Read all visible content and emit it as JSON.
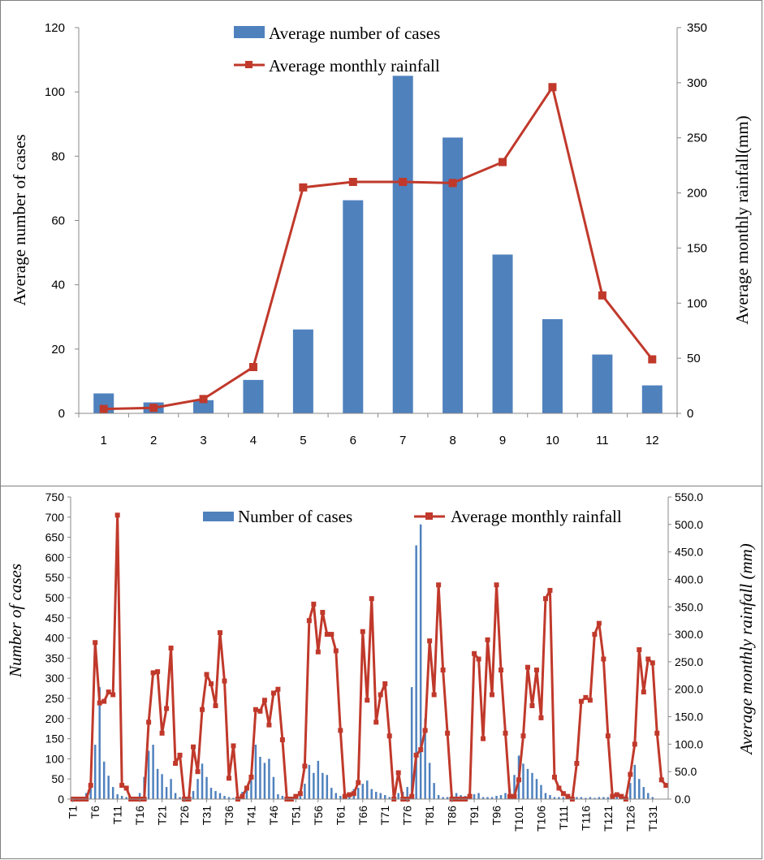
{
  "chart_data": [
    {
      "type": "bar+line",
      "title": "",
      "xlabel": "",
      "ylabel": "Average number of cases",
      "y2label": "Average monthly rainfall(mm)",
      "ylim": [
        0,
        120
      ],
      "yticks": [
        0,
        20,
        40,
        60,
        80,
        100,
        120
      ],
      "y2lim": [
        0,
        350
      ],
      "y2ticks": [
        0,
        50,
        100,
        150,
        200,
        250,
        300,
        350
      ],
      "categories": [
        "1",
        "2",
        "3",
        "4",
        "5",
        "6",
        "7",
        "8",
        "9",
        "10",
        "11",
        "12"
      ],
      "series": [
        {
          "name": "Average number of cases",
          "type": "bar",
          "axis": "left",
          "color": "#4F81BD",
          "values": [
            6.2,
            3.4,
            4.1,
            10.4,
            26.1,
            66.3,
            105.0,
            85.8,
            49.4,
            29.3,
            18.3,
            8.7
          ]
        },
        {
          "name": "Average monthly rainfall",
          "type": "line",
          "axis": "right",
          "color": "#C0392B",
          "values": [
            4,
            5,
            13,
            42,
            205,
            210,
            210,
            209,
            228,
            296,
            107,
            49
          ]
        }
      ],
      "legend": [
        "Average number of cases",
        "Average monthly rainfall"
      ],
      "legend_position": "top-center"
    },
    {
      "type": "bar+line",
      "title": "",
      "xlabel": "",
      "ylabel": "Number of cases",
      "y2label": "Average monthly rainfall (mm)",
      "ylim": [
        0,
        750
      ],
      "yticks": [
        0,
        50,
        100,
        150,
        200,
        250,
        300,
        350,
        400,
        450,
        500,
        550,
        600,
        650,
        700,
        750
      ],
      "y2lim": [
        0,
        550
      ],
      "y2ticks": [
        "0.0",
        "50.0",
        "100.0",
        "150.0",
        "200.0",
        "250.0",
        "300.0",
        "350.0",
        "400.0",
        "450.0",
        "500.0",
        "550.0"
      ],
      "xtick_labels": [
        "T1",
        "T6",
        "T11",
        "T16",
        "T21",
        "T26",
        "T31",
        "T36",
        "T41",
        "T46",
        "T51",
        "T56",
        "T61",
        "T66",
        "T71",
        "T76",
        "T81",
        "T86",
        "T91",
        "T96",
        "T101",
        "T106",
        "T111",
        "T116",
        "T121",
        "T126",
        "T131"
      ],
      "xtick_step": 5,
      "series": [
        {
          "name": "Number of cases",
          "type": "bar",
          "axis": "left",
          "color": "#4F81BD",
          "values": [
            2,
            3,
            5,
            15,
            35,
            135,
            278,
            93,
            58,
            30,
            12,
            8,
            5,
            3,
            5,
            15,
            55,
            120,
            135,
            75,
            62,
            30,
            50,
            15,
            5,
            3,
            5,
            20,
            50,
            88,
            55,
            28,
            20,
            15,
            8,
            5,
            3,
            8,
            18,
            25,
            48,
            135,
            105,
            90,
            100,
            55,
            12,
            8,
            5,
            3,
            5,
            15,
            38,
            85,
            65,
            95,
            65,
            60,
            28,
            15,
            8,
            5,
            5,
            25,
            28,
            38,
            46,
            25,
            18,
            15,
            10,
            5,
            5,
            15,
            18,
            30,
            278,
            630,
            682,
            200,
            90,
            40,
            10,
            5,
            5,
            8,
            15,
            10,
            8,
            20,
            12,
            15,
            5,
            5,
            5,
            8,
            10,
            15,
            25,
            60,
            108,
            88,
            75,
            65,
            50,
            35,
            15,
            10,
            5,
            5,
            5,
            5,
            3,
            5,
            5,
            3,
            5,
            3,
            5,
            5,
            5,
            5,
            5,
            5,
            10,
            40,
            85,
            50,
            30,
            15,
            5
          ]
        },
        {
          "name": "Average monthly rainfall",
          "type": "line",
          "axis": "right",
          "color": "#C0392B",
          "values": [
            0,
            0,
            0,
            0,
            25,
            285,
            175,
            178,
            195,
            190,
            517,
            25,
            20,
            0,
            0,
            0,
            0,
            140,
            230,
            232,
            120,
            165,
            275,
            65,
            80,
            0,
            0,
            95,
            50,
            163,
            227,
            210,
            170,
            303,
            215,
            38,
            97,
            0,
            5,
            20,
            40,
            163,
            160,
            180,
            135,
            193,
            200,
            108,
            0,
            0,
            5,
            10,
            60,
            325,
            355,
            268,
            340,
            300,
            300,
            270,
            125,
            5,
            8,
            10,
            30,
            305,
            180,
            365,
            140,
            190,
            210,
            115,
            0,
            48,
            0,
            0,
            5,
            80,
            90,
            125,
            288,
            190,
            390,
            235,
            120,
            0,
            0,
            0,
            0,
            5,
            265,
            255,
            110,
            290,
            190,
            390,
            235,
            120,
            5,
            5,
            35,
            115,
            240,
            170,
            235,
            148,
            365,
            380,
            40,
            20,
            10,
            5,
            0,
            65,
            178,
            185,
            180,
            300,
            320,
            255,
            115,
            5,
            8,
            5,
            0,
            45,
            100,
            272,
            195,
            255,
            248,
            120,
            35,
            25
          ]
        }
      ],
      "legend": [
        "Number of cases",
        "Average monthly rainfall"
      ],
      "legend_position": "top-center"
    }
  ]
}
